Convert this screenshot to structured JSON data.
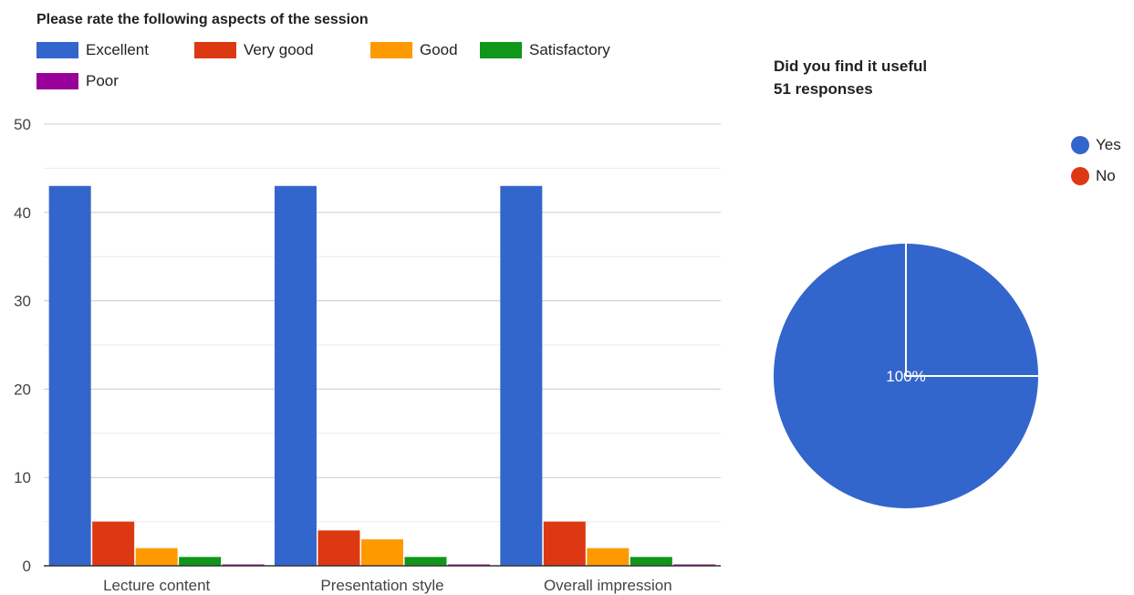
{
  "chart_data": [
    {
      "type": "bar",
      "title": "Please rate the following aspects of the session",
      "categories": [
        "Lecture content",
        "Presentation style",
        "Overall impression"
      ],
      "series": [
        {
          "name": "Excellent",
          "color": "#3366cc",
          "values": [
            43,
            43,
            43
          ]
        },
        {
          "name": "Very good",
          "color": "#dc3912",
          "values": [
            5,
            4,
            5
          ]
        },
        {
          "name": "Good",
          "color": "#ff9900",
          "values": [
            2,
            3,
            2
          ]
        },
        {
          "name": "Satisfactory",
          "color": "#109618",
          "values": [
            1,
            1,
            1
          ]
        },
        {
          "name": "Poor",
          "color": "#990099",
          "values": [
            0,
            0,
            0
          ]
        }
      ],
      "ylim": [
        0,
        50
      ],
      "yticks": [
        0,
        10,
        20,
        30,
        40,
        50
      ],
      "grid": true,
      "legend_position": "top"
    },
    {
      "type": "pie",
      "title": "Did you find it useful",
      "subtitle": "51 responses",
      "slices": [
        {
          "label": "Yes",
          "value": 100,
          "color": "#3366cc"
        },
        {
          "label": "No",
          "value": 0,
          "color": "#dc3912"
        }
      ],
      "slice_label": "100%",
      "legend_position": "right"
    }
  ]
}
